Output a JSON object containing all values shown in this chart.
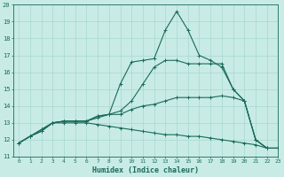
{
  "xlabel": "Humidex (Indice chaleur)",
  "ylabel": "",
  "xlim": [
    -0.5,
    23
  ],
  "ylim": [
    11,
    20
  ],
  "xticks": [
    0,
    1,
    2,
    3,
    4,
    5,
    6,
    7,
    8,
    9,
    10,
    11,
    12,
    13,
    14,
    15,
    16,
    17,
    18,
    19,
    20,
    21,
    22,
    23
  ],
  "yticks": [
    11,
    12,
    13,
    14,
    15,
    16,
    17,
    18,
    19,
    20
  ],
  "bg_color": "#c8ebe6",
  "line_color": "#1a6b5a",
  "grid_color": "#a8d8d0",
  "lines": [
    [
      11.8,
      12.2,
      12.6,
      13.0,
      13.1,
      13.1,
      13.1,
      13.4,
      13.5,
      15.3,
      16.6,
      16.7,
      16.8,
      18.5,
      19.6,
      18.5,
      17.0,
      16.7,
      16.3,
      15.0,
      14.3,
      12.0,
      11.5,
      11.5
    ],
    [
      11.8,
      12.2,
      12.6,
      13.0,
      13.1,
      13.1,
      13.1,
      13.4,
      13.5,
      13.7,
      14.3,
      15.3,
      16.3,
      16.7,
      16.7,
      16.5,
      16.5,
      16.5,
      16.5,
      15.0,
      14.3,
      12.0,
      11.5,
      11.5
    ],
    [
      11.8,
      12.2,
      12.5,
      13.0,
      13.1,
      13.1,
      13.1,
      13.3,
      13.5,
      13.5,
      13.8,
      14.0,
      14.1,
      14.3,
      14.5,
      14.5,
      14.5,
      14.5,
      14.6,
      14.5,
      14.3,
      12.0,
      11.5,
      11.5
    ],
    [
      11.8,
      12.2,
      12.5,
      13.0,
      13.0,
      13.0,
      13.0,
      12.9,
      12.8,
      12.7,
      12.6,
      12.5,
      12.4,
      12.3,
      12.3,
      12.2,
      12.2,
      12.1,
      12.0,
      11.9,
      11.8,
      11.7,
      11.5,
      11.5
    ]
  ],
  "x_values": [
    0,
    1,
    2,
    3,
    4,
    5,
    6,
    7,
    8,
    9,
    10,
    11,
    12,
    13,
    14,
    15,
    16,
    17,
    18,
    19,
    20,
    21,
    22,
    23
  ]
}
